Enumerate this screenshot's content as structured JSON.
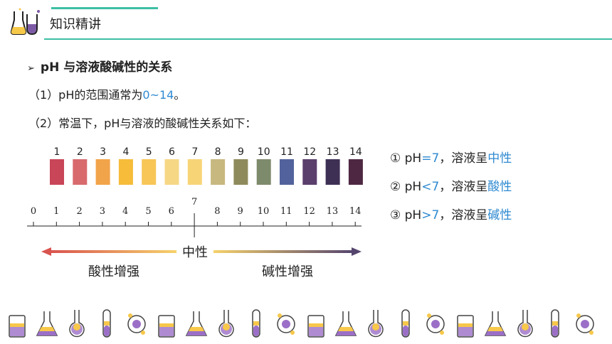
{
  "header": {
    "title": "知识精讲",
    "logo_icon": "chemistry-flask-logo-icon"
  },
  "heading": "pH 与溶液酸碱性的关系",
  "line1": {
    "prefix": "（1）pH的范围通常为",
    "range": "0~14",
    "suffix": "。"
  },
  "line2": "（2）常温下，pH与溶液的酸碱性关系如下：",
  "chart_data": {
    "type": "table",
    "strip_numbers": [
      "1",
      "2",
      "3",
      "4",
      "5",
      "6",
      "7",
      "8",
      "9",
      "10",
      "11",
      "12",
      "13",
      "14"
    ],
    "strip_colors": [
      "#c84658",
      "#d86a6e",
      "#f2a44a",
      "#f6bc3a",
      "#f7c657",
      "#f6d784",
      "#f7d577",
      "#c7b87f",
      "#8f8a5b",
      "#7e8a6c",
      "#52629c",
      "#5a3e6b",
      "#3e3055",
      "#4e2843"
    ],
    "scale_ticks": [
      "0",
      "1",
      "2",
      "3",
      "4",
      "5",
      "6",
      "7",
      "8",
      "9",
      "10",
      "11",
      "12",
      "13",
      "14"
    ],
    "neutral_label": "中性",
    "acid_label": "酸性增强",
    "base_label": "碱性增强",
    "colors": {
      "acid_arrow": "#d9534f",
      "neutral": "#f6d26b",
      "base_arrow": "#55456e"
    }
  },
  "rules": [
    {
      "prefix": "① pH",
      "op": "=7",
      "mid": "，溶液呈",
      "result": "中性"
    },
    {
      "prefix": "② pH",
      "op": "<7",
      "mid": "，溶液呈",
      "result": "酸性"
    },
    {
      "prefix": "③ pH",
      "op": ">7",
      "mid": "，溶液呈",
      "result": "碱性"
    }
  ],
  "footer_icons": [
    "beaker-icon",
    "round-flask-icon",
    "conical-flask-icon",
    "volumetric-flask-icon",
    "beaker-icon",
    "erlenmeyer-flask-icon",
    "reagent-bottle-icon",
    "test-tube-icon",
    "alcohol-lamp-icon",
    "thermometer-icon",
    "test-tube-rack-icon",
    "beaker-with-rod-icon",
    "tripod-icon",
    "microscope-icon",
    "dropper-icon",
    "funnel-icon",
    "molecule-icon",
    "atom-icon",
    "benzene-ring-icon",
    "sparkle-icon"
  ]
}
